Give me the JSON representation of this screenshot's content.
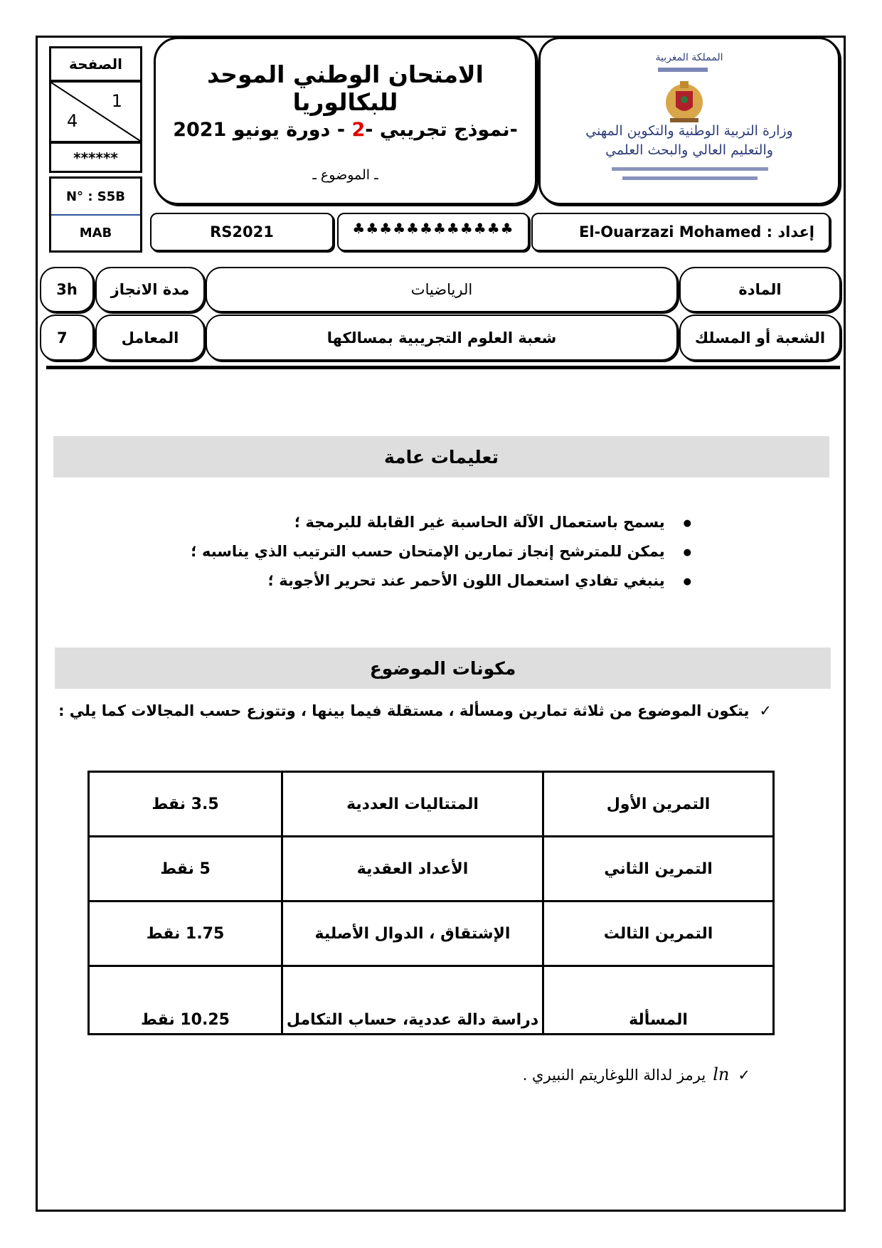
{
  "header": {
    "page_label": "الصفحة",
    "page_current": "1",
    "page_total": "4",
    "stars_short": "******",
    "number": "N° : S5B",
    "code": "MAB",
    "title": "الامتحان الوطني الموحد للبكالوريا",
    "subtitle_prefix": "-نموذج تجريبي -",
    "subtitle_number": "2",
    "subtitle_suffix": " - دورة يونيو 2021",
    "subject_label": "ـ الموضوع ـ",
    "ref": "RS2021",
    "stars_long": "♣♣♣♣♣♣♣♣♣♣♣♣",
    "author": "إعداد : El-Ouarzazi Mohamed",
    "accent_color": "#e00000"
  },
  "logo": {
    "kingdom": "المملكة المغربية",
    "ministry_line1": "وزارة التربية الوطنية والتكوين المهني",
    "ministry_line2": "والتعليم العالي والبحث العلمي"
  },
  "info": {
    "duration_value": "3h",
    "duration_label": "مدة الانجاز",
    "subject_value": "الرياضيات",
    "subject_label": "المادة",
    "coef_value": "7",
    "coef_label": "المعامل",
    "branch_value": "شعبة العلوم التجريبية بمسالكها",
    "branch_label": "الشعبة أو المسلك"
  },
  "instructions": {
    "title": "تعليمات عامة",
    "items": [
      "يسمح باستعمال الآلة الحاسبة غير القابلة للبرمجة ؛",
      "يمكن للمترشح إنجاز تمارين الإمتحان حسب الترتيب الذي يناسبه ؛",
      "ينبغي تفادي استعمال اللون الأحمر عند تحرير الأجوبة ؛"
    ]
  },
  "components": {
    "title": "مكونات الموضوع",
    "intro": "يتكون الموضوع من ثلاثة تمارين ومسألة ، مستقلة فيما بينها ، وتتوزع حسب المجالات كما يلي :",
    "rows": [
      {
        "exercise": "التمرين الأول",
        "topic": "المتتاليات العددية",
        "points": "3.5 نقط"
      },
      {
        "exercise": "التمرين الثاني",
        "topic": "الأعداد العقدية",
        "points": "5 نقط"
      },
      {
        "exercise": "التمرين الثالث",
        "topic": "الإشتقاق ، الدوال الأصلية",
        "points": "1.75 نقط"
      },
      {
        "exercise": "المسألة",
        "topic": "دراسة دالة عددية، حساب التكامل",
        "points": "10.25 نقط"
      }
    ],
    "note_symbol": "ln",
    "note_text": "يرمز لدالة اللوغاريتم النبيري ."
  }
}
